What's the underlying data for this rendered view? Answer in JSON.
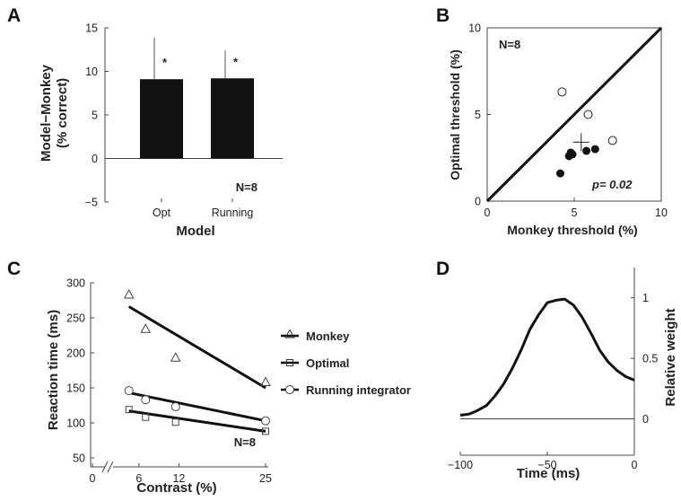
{
  "panels": {
    "a": {
      "label": "A"
    },
    "b": {
      "label": "B"
    },
    "c": {
      "label": "C"
    },
    "d": {
      "label": "D"
    }
  },
  "chart_data": [
    {
      "panel": "A",
      "type": "bar",
      "categories": [
        "Opt",
        "Running"
      ],
      "values": [
        9.1,
        9.2
      ],
      "error_upper": [
        13.9,
        12.4
      ],
      "significance": [
        "*",
        "*"
      ],
      "xlabel": "Model",
      "ylabel_line1": "Model−Monkey",
      "ylabel_line2": "(% correct)",
      "ylim": [
        -5,
        15
      ],
      "yticks": [
        -5,
        0,
        5,
        10,
        15
      ],
      "ytick_labels": [
        "−5",
        "0",
        "5",
        "10",
        "15"
      ],
      "annotation": "N=8",
      "bar_color": "#111111"
    },
    {
      "panel": "B",
      "type": "scatter",
      "xlabel": "Monkey threshold (%)",
      "ylabel": "Optimal threshold (%)",
      "xlim": [
        0,
        10
      ],
      "ylim": [
        0,
        10
      ],
      "xticks": [
        0,
        5,
        10
      ],
      "yticks": [
        0,
        5,
        10
      ],
      "open_points": [
        [
          4.3,
          6.3
        ],
        [
          5.8,
          5.0
        ],
        [
          7.2,
          3.5
        ]
      ],
      "filled_points": [
        [
          4.7,
          2.6
        ],
        [
          4.8,
          2.8
        ],
        [
          4.9,
          2.7
        ],
        [
          5.7,
          2.9
        ],
        [
          6.2,
          3.0
        ],
        [
          4.2,
          1.6
        ]
      ],
      "mean_cross": [
        5.4,
        3.4
      ],
      "unity_line": [
        [
          0,
          0
        ],
        [
          10,
          10
        ]
      ],
      "annotation_n": "N=8",
      "annotation_p": "p= 0.02"
    },
    {
      "panel": "C",
      "type": "line",
      "xlabel": "Contrast (%)",
      "ylabel": "Reaction time (ms)",
      "xlim": [
        0,
        25
      ],
      "ylim": [
        50,
        300
      ],
      "xticks": [
        0,
        6,
        12,
        25
      ],
      "xtick_labels": [
        "0",
        "6",
        "12",
        "25"
      ],
      "yticks": [
        50,
        100,
        150,
        200,
        250,
        300
      ],
      "x": [
        4.5,
        7,
        11.5,
        25
      ],
      "series": [
        {
          "name": "Monkey",
          "marker": "triangle",
          "points": [
            282,
            233,
            192,
            157
          ],
          "fit": [
            266,
            150
          ]
        },
        {
          "name": "Optimal",
          "marker": "square",
          "points": [
            119,
            108,
            101,
            88
          ],
          "fit": [
            117,
            88
          ]
        },
        {
          "name": "Running integrator",
          "marker": "circle",
          "points": [
            146,
            133,
            123,
            103
          ],
          "fit": [
            143,
            103
          ]
        }
      ],
      "annotation": "N=8"
    },
    {
      "panel": "D",
      "type": "line",
      "xlabel": "Time (ms)",
      "ylabel": "Relative weight",
      "xlim": [
        -100,
        0
      ],
      "ylim": [
        -0.3,
        1.25
      ],
      "xticks": [
        -100,
        -50,
        0
      ],
      "xtick_labels": [
        "−100",
        "−50",
        "0"
      ],
      "yticks": [
        0,
        0.5,
        1
      ],
      "x": [
        -100,
        -95,
        -90,
        -85,
        -80,
        -75,
        -70,
        -65,
        -60,
        -55,
        -50,
        -45,
        -40,
        -35,
        -30,
        -25,
        -20,
        -15,
        -10,
        -5,
        0
      ],
      "values": [
        0.03,
        0.04,
        0.07,
        0.11,
        0.19,
        0.29,
        0.42,
        0.57,
        0.74,
        0.86,
        0.96,
        0.98,
        0.99,
        0.94,
        0.84,
        0.71,
        0.57,
        0.47,
        0.4,
        0.35,
        0.32
      ]
    }
  ]
}
